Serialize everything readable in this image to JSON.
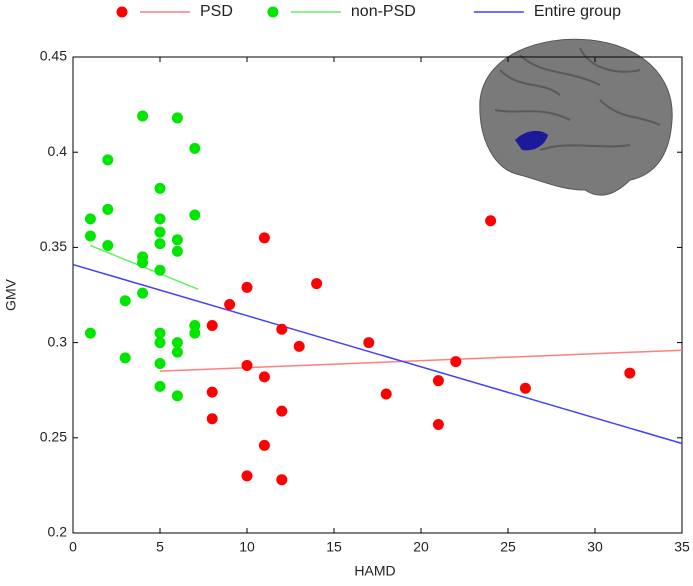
{
  "chart_data": {
    "type": "scatter",
    "xlabel": "HAMD",
    "ylabel": "GMV",
    "xlim": [
      0,
      35
    ],
    "ylim": [
      0.2,
      0.45
    ],
    "xticks": [
      0,
      5,
      10,
      15,
      20,
      25,
      30,
      35
    ],
    "yticks": [
      0.2,
      0.25,
      0.3,
      0.35,
      0.4,
      0.45
    ],
    "series": [
      {
        "name": "PSD",
        "color": "#ff0000",
        "line_color": "#ff7f7f",
        "x": [
          8,
          8,
          8,
          9,
          10,
          10,
          10,
          11,
          11,
          11,
          12,
          12,
          12,
          13,
          14,
          17,
          18,
          21,
          21,
          22,
          24,
          26,
          32
        ],
        "y": [
          0.309,
          0.274,
          0.26,
          0.32,
          0.329,
          0.288,
          0.23,
          0.355,
          0.282,
          0.246,
          0.307,
          0.264,
          0.228,
          0.298,
          0.331,
          0.3,
          0.273,
          0.28,
          0.257,
          0.29,
          0.364,
          0.276,
          0.284
        ],
        "fit": {
          "x": [
            5,
            35
          ],
          "y": [
            0.285,
            0.296
          ]
        }
      },
      {
        "name": "non-PSD",
        "color": "#00e600",
        "line_color": "#66ee66",
        "x": [
          1,
          1,
          1,
          2,
          2,
          2,
          3,
          3,
          4,
          4,
          4,
          4,
          5,
          5,
          5,
          5,
          5,
          5,
          5,
          5,
          5,
          6,
          6,
          6,
          6,
          6,
          6,
          7,
          7,
          7,
          7
        ],
        "y": [
          0.365,
          0.356,
          0.305,
          0.396,
          0.37,
          0.351,
          0.322,
          0.292,
          0.419,
          0.345,
          0.342,
          0.326,
          0.381,
          0.365,
          0.358,
          0.352,
          0.338,
          0.305,
          0.3,
          0.289,
          0.277,
          0.418,
          0.354,
          0.348,
          0.3,
          0.295,
          0.272,
          0.402,
          0.367,
          0.309,
          0.305
        ],
        "fit": {
          "x": [
            1,
            7.2
          ],
          "y": [
            0.351,
            0.328
          ]
        }
      },
      {
        "name": "Entire group",
        "line_color": "#4040ff",
        "fit": {
          "x": [
            0,
            35
          ],
          "y": [
            0.341,
            0.247
          ]
        }
      }
    ]
  }
}
